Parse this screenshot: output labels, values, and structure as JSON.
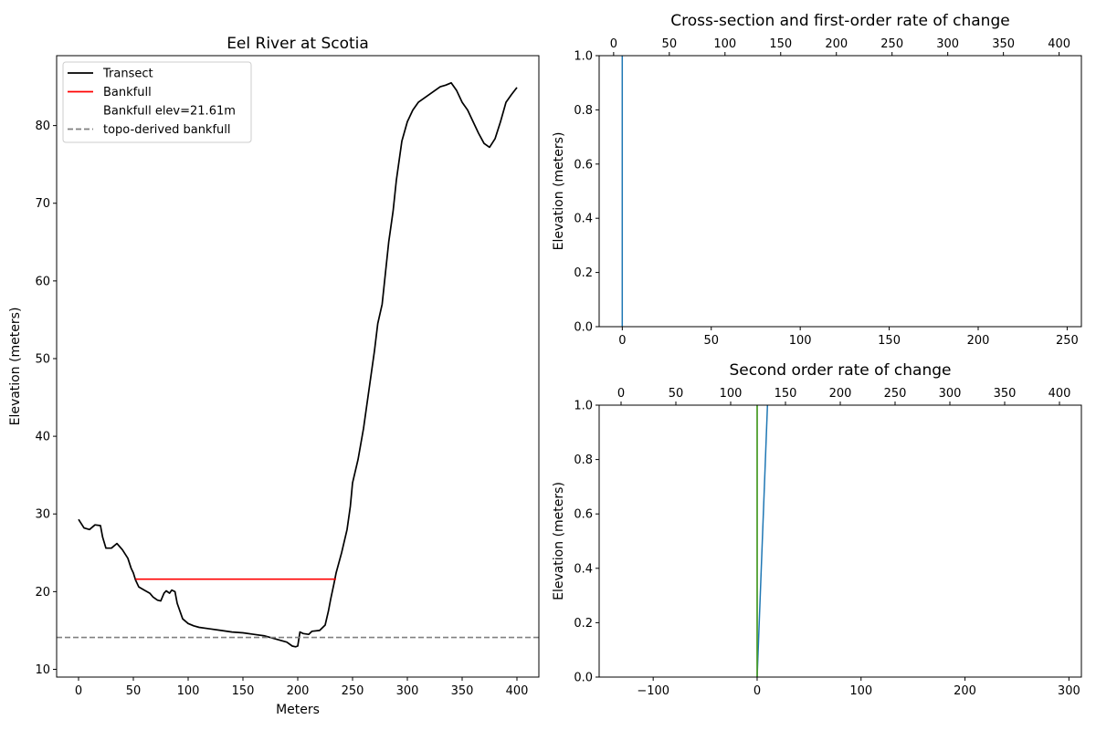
{
  "chart_data": [
    {
      "type": "line",
      "title": "Eel River at Scotia",
      "xlabel": "Meters",
      "ylabel": "Elevation (meters)",
      "xlim": [
        -20,
        420
      ],
      "ylim": [
        9,
        89
      ],
      "xticks": [
        0,
        50,
        100,
        150,
        200,
        250,
        300,
        350,
        400
      ],
      "yticks": [
        10,
        20,
        30,
        40,
        50,
        60,
        70,
        80
      ],
      "grid": false,
      "legend_position": "upper left",
      "legend": [
        "Transect",
        "Bankfull",
        "Bankfull elev=21.61m",
        "topo-derived bankfull"
      ],
      "series": [
        {
          "name": "Transect",
          "color": "#000000",
          "points": [
            [
              0,
              29.3
            ],
            [
              5,
              28.2
            ],
            [
              10,
              28.0
            ],
            [
              15,
              28.6
            ],
            [
              20,
              28.5
            ],
            [
              22,
              27.0
            ],
            [
              25,
              25.6
            ],
            [
              30,
              25.6
            ],
            [
              35,
              26.2
            ],
            [
              40,
              25.4
            ],
            [
              45,
              24.3
            ],
            [
              48,
              23.0
            ],
            [
              50,
              22.4
            ],
            [
              52,
              21.5
            ],
            [
              55,
              20.6
            ],
            [
              60,
              20.2
            ],
            [
              65,
              19.8
            ],
            [
              68,
              19.3
            ],
            [
              72,
              18.9
            ],
            [
              75,
              18.8
            ],
            [
              78,
              19.8
            ],
            [
              80,
              20.1
            ],
            [
              83,
              19.8
            ],
            [
              85,
              20.2
            ],
            [
              88,
              20.0
            ],
            [
              90,
              18.5
            ],
            [
              95,
              16.5
            ],
            [
              100,
              15.9
            ],
            [
              105,
              15.6
            ],
            [
              110,
              15.4
            ],
            [
              120,
              15.2
            ],
            [
              130,
              15.0
            ],
            [
              140,
              14.8
            ],
            [
              150,
              14.7
            ],
            [
              160,
              14.5
            ],
            [
              170,
              14.3
            ],
            [
              180,
              13.9
            ],
            [
              190,
              13.5
            ],
            [
              195,
              13.0
            ],
            [
              198,
              12.9
            ],
            [
              200,
              13.0
            ],
            [
              202,
              14.8
            ],
            [
              205,
              14.6
            ],
            [
              210,
              14.5
            ],
            [
              213,
              14.9
            ],
            [
              220,
              15.0
            ],
            [
              225,
              15.7
            ],
            [
              228,
              17.5
            ],
            [
              230,
              19.0
            ],
            [
              233,
              21.0
            ],
            [
              235,
              22.4
            ],
            [
              240,
              25.0
            ],
            [
              245,
              28.0
            ],
            [
              248,
              31.0
            ],
            [
              250,
              34.0
            ],
            [
              255,
              37.0
            ],
            [
              260,
              41.0
            ],
            [
              265,
              46.0
            ],
            [
              270,
              51.0
            ],
            [
              273,
              54.5
            ],
            [
              277,
              57.0
            ],
            [
              280,
              61.0
            ],
            [
              283,
              65.0
            ],
            [
              287,
              69.0
            ],
            [
              290,
              73.0
            ],
            [
              295,
              78.0
            ],
            [
              300,
              80.5
            ],
            [
              305,
              82.0
            ],
            [
              310,
              83.0
            ],
            [
              315,
              83.5
            ],
            [
              320,
              84.0
            ],
            [
              325,
              84.5
            ],
            [
              330,
              85.0
            ],
            [
              335,
              85.2
            ],
            [
              340,
              85.5
            ],
            [
              345,
              84.5
            ],
            [
              350,
              83.0
            ],
            [
              355,
              82.0
            ],
            [
              360,
              80.5
            ],
            [
              365,
              79.0
            ],
            [
              370,
              77.7
            ],
            [
              375,
              77.2
            ],
            [
              380,
              78.3
            ],
            [
              385,
              80.5
            ],
            [
              390,
              83.0
            ],
            [
              395,
              84.0
            ],
            [
              400,
              84.9
            ]
          ]
        },
        {
          "name": "Bankfull",
          "color": "#ff0000",
          "points": [
            [
              52,
              21.61
            ],
            [
              235,
              21.61
            ]
          ]
        },
        {
          "name": "topo-derived bankfull",
          "color": "#808080",
          "dashed": true,
          "hline": 14.1
        }
      ]
    },
    {
      "type": "line",
      "title": "Cross-section and first-order rate of change",
      "xlabel": "",
      "ylabel": "Elevation (meters)",
      "xlim": [
        -13,
        258
      ],
      "ylim": [
        0,
        1
      ],
      "xticks": [
        0,
        50,
        100,
        150,
        200,
        250
      ],
      "yticks": [
        0.0,
        0.2,
        0.4,
        0.6,
        0.8,
        1.0
      ],
      "secondary_xlim": [
        -13,
        420
      ],
      "secondary_xticks": [
        0,
        50,
        100,
        150,
        200,
        250,
        300,
        350,
        400
      ],
      "series": [
        {
          "color": "#1f77b4",
          "points": [
            [
              0,
              0
            ],
            [
              0,
              1
            ]
          ]
        }
      ]
    },
    {
      "type": "line",
      "title": "Second order rate of change",
      "xlabel": "",
      "ylabel": "Elevation (meters)",
      "xlim": [
        -152,
        312
      ],
      "ylim": [
        0,
        1
      ],
      "xticks": [
        -100,
        0,
        100,
        200,
        300
      ],
      "yticks": [
        0.0,
        0.2,
        0.4,
        0.6,
        0.8,
        1.0
      ],
      "secondary_xlim": [
        -20,
        420
      ],
      "secondary_xticks": [
        0,
        50,
        100,
        150,
        200,
        250,
        300,
        350,
        400
      ],
      "series": [
        {
          "color": "#1f77b4",
          "points": [
            [
              0,
              0
            ],
            [
              10,
              1
            ]
          ]
        },
        {
          "color": "#ff7f0e",
          "points": [
            [
              0,
              0
            ],
            [
              0,
              1
            ]
          ]
        },
        {
          "color": "#2ca02c",
          "points": [
            [
              0,
              0
            ],
            [
              0,
              1
            ]
          ]
        }
      ]
    }
  ]
}
